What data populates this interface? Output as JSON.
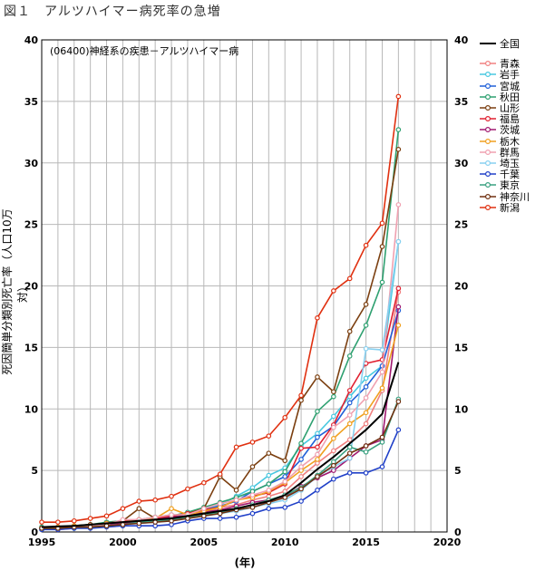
{
  "figure_title": "図１　アルツハイマー病死率の急増",
  "chart_data": {
    "type": "line",
    "title": "(06400)神経系の疾患－アルツハイマー病",
    "xlabel": "(年)",
    "ylabel": "死因簡単分類別死亡率（人口10万対）",
    "xlim": [
      1995,
      2020
    ],
    "ylim": [
      0,
      40
    ],
    "x_ticks": [
      1995,
      2000,
      2005,
      2010,
      2015,
      2020
    ],
    "y_ticks": [
      0,
      5,
      10,
      15,
      20,
      25,
      30,
      35,
      40
    ],
    "grid": true,
    "legend_position": "top-right",
    "x": [
      1995,
      1996,
      1997,
      1998,
      1999,
      2000,
      2001,
      2002,
      2003,
      2004,
      2005,
      2006,
      2007,
      2008,
      2009,
      2010,
      2011,
      2012,
      2013,
      2014,
      2015,
      2016,
      2017
    ],
    "national": {
      "name": "全国",
      "color": "#000000",
      "values": [
        0.4,
        0.45,
        0.5,
        0.6,
        0.7,
        0.8,
        0.9,
        1.0,
        1.1,
        1.3,
        1.5,
        1.7,
        1.9,
        2.2,
        2.5,
        3.0,
        4.0,
        5.1,
        6.1,
        7.2,
        8.3,
        9.6,
        13.8
      ]
    },
    "series": [
      {
        "name": "青森",
        "color": "#f08080",
        "values": [
          0.3,
          0.2,
          0.3,
          0.5,
          0.5,
          0.8,
          1.0,
          1.1,
          1.2,
          1.4,
          1.6,
          2.0,
          2.2,
          2.6,
          2.9,
          3.3,
          4.5,
          5.6,
          6.6,
          7.5,
          8.8,
          11.5,
          19.5
        ]
      },
      {
        "name": "岩手",
        "color": "#48c8e0",
        "values": [
          0.2,
          0.3,
          0.3,
          0.4,
          0.6,
          0.7,
          0.9,
          1.2,
          1.4,
          1.4,
          1.8,
          2.2,
          2.9,
          3.6,
          4.6,
          5.2,
          7.0,
          8.0,
          9.4,
          11.0,
          12.5,
          13.5,
          23.6
        ]
      },
      {
        "name": "宮城",
        "color": "#2060d8",
        "values": [
          0.3,
          0.4,
          0.4,
          0.5,
          0.6,
          0.8,
          1.0,
          1.0,
          1.2,
          1.5,
          1.8,
          2.1,
          2.5,
          3.3,
          3.9,
          4.5,
          5.9,
          7.7,
          8.6,
          10.5,
          11.8,
          13.5,
          18.0
        ]
      },
      {
        "name": "秋田",
        "color": "#2ea070",
        "values": [
          0.4,
          0.4,
          0.5,
          0.6,
          0.8,
          0.9,
          1.0,
          1.2,
          1.3,
          1.6,
          2.0,
          2.4,
          2.8,
          3.3,
          3.9,
          4.9,
          7.2,
          9.8,
          11.0,
          14.3,
          16.8,
          20.3,
          32.7
        ]
      },
      {
        "name": "山形",
        "color": "#7b3f10",
        "values": [
          0.3,
          0.4,
          0.5,
          0.6,
          0.7,
          0.9,
          1.9,
          1.1,
          1.3,
          1.5,
          1.9,
          4.5,
          3.4,
          5.3,
          6.4,
          5.8,
          10.7,
          12.6,
          11.4,
          16.3,
          18.5,
          23.2,
          31.1
        ]
      },
      {
        "name": "福島",
        "color": "#e02030",
        "values": [
          0.3,
          0.4,
          0.4,
          0.5,
          0.7,
          0.9,
          1.0,
          1.1,
          1.3,
          1.5,
          1.8,
          2.0,
          2.6,
          2.9,
          3.2,
          3.9,
          6.8,
          6.9,
          8.7,
          11.5,
          13.7,
          14.0,
          19.8
        ]
      },
      {
        "name": "茨城",
        "color": "#a01870",
        "values": [
          0.2,
          0.3,
          0.4,
          0.5,
          0.6,
          0.7,
          0.9,
          1.0,
          1.2,
          1.3,
          1.6,
          1.8,
          2.1,
          2.4,
          2.6,
          2.9,
          3.7,
          4.4,
          5.0,
          6.0,
          7.0,
          7.5,
          18.3
        ]
      },
      {
        "name": "栃木",
        "color": "#f0a020",
        "values": [
          0.3,
          0.4,
          0.5,
          0.5,
          0.7,
          0.8,
          1.0,
          1.1,
          1.9,
          1.4,
          1.7,
          2.0,
          2.6,
          2.8,
          3.3,
          4.0,
          5.0,
          5.9,
          7.6,
          8.8,
          9.7,
          11.7,
          16.8
        ]
      },
      {
        "name": "群馬",
        "color": "#f0a0b0",
        "values": [
          0.3,
          0.3,
          0.4,
          0.5,
          0.6,
          1.0,
          1.0,
          1.2,
          1.4,
          1.4,
          1.9,
          2.3,
          2.6,
          3.0,
          3.4,
          4.1,
          5.3,
          6.3,
          8.5,
          9.5,
          10.9,
          13.0,
          26.6
        ]
      },
      {
        "name": "埼玉",
        "color": "#88d0f0",
        "values": [
          0.2,
          0.3,
          0.3,
          0.4,
          0.5,
          0.6,
          0.7,
          0.8,
          0.9,
          1.1,
          1.3,
          1.5,
          1.7,
          2.0,
          2.3,
          2.6,
          3.4,
          4.5,
          5.3,
          6.0,
          14.9,
          14.8,
          23.6
        ]
      },
      {
        "name": "千葉",
        "color": "#2040c8",
        "values": [
          0.2,
          0.2,
          0.3,
          0.3,
          0.4,
          0.5,
          0.5,
          0.5,
          0.6,
          0.9,
          1.1,
          1.1,
          1.2,
          1.5,
          1.9,
          2.0,
          2.5,
          3.4,
          4.3,
          4.8,
          4.8,
          5.3,
          8.3
        ]
      },
      {
        "name": "東京",
        "color": "#3aa080",
        "values": [
          0.3,
          0.3,
          0.4,
          0.4,
          0.5,
          0.6,
          0.8,
          0.9,
          1.0,
          1.2,
          1.4,
          1.6,
          1.9,
          2.2,
          2.6,
          3.0,
          3.6,
          4.6,
          5.7,
          6.9,
          6.5,
          7.3,
          10.8
        ]
      },
      {
        "name": "神奈川",
        "color": "#703010",
        "values": [
          0.3,
          0.3,
          0.4,
          0.4,
          0.5,
          0.6,
          0.7,
          0.8,
          0.9,
          1.1,
          1.3,
          1.5,
          1.8,
          2.0,
          2.4,
          2.8,
          3.5,
          4.5,
          5.4,
          6.4,
          7.0,
          7.7,
          10.6
        ]
      },
      {
        "name": "新潟",
        "color": "#e03010",
        "values": [
          0.8,
          0.8,
          0.9,
          1.1,
          1.3,
          1.9,
          2.5,
          2.6,
          2.9,
          3.5,
          4.0,
          4.7,
          6.9,
          7.3,
          7.8,
          9.3,
          11.1,
          17.4,
          19.6,
          20.6,
          23.3,
          25.1,
          35.4
        ]
      }
    ]
  }
}
